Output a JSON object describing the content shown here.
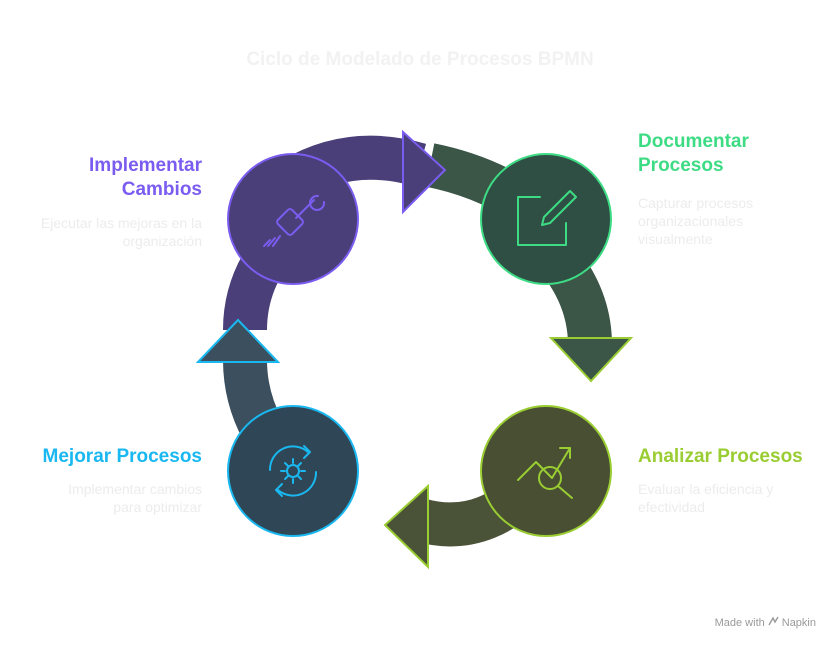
{
  "title": "Ciclo de Modelado de Procesos BPMN",
  "steps": [
    {
      "id": "documentar",
      "label": "Documentar Procesos",
      "label_line1": "Documentar",
      "label_line2": "Procesos",
      "description_line1": "Capturar procesos",
      "description_line2": "organizacionales",
      "description_line3": "visualmente",
      "icon": "edit-document-icon",
      "color": "#3ddc84"
    },
    {
      "id": "analizar",
      "label": "Analizar Procesos",
      "description_line1": "Evaluar la eficiencia y",
      "description_line2": "efectividad",
      "icon": "chart-magnifier-icon",
      "color": "#9acd32"
    },
    {
      "id": "mejorar",
      "label": "Mejorar Procesos",
      "description_line1": "Implementar cambios",
      "description_line2": "para optimizar",
      "icon": "gear-cycle-icon",
      "color": "#1ab8f0"
    },
    {
      "id": "implementar",
      "label": "Implementar Cambios",
      "label_line1": "Implementar",
      "label_line2": "Cambios",
      "description_line1": "Ejecutar las mejoras en la",
      "description_line2": "organización",
      "icon": "hand-wrench-icon",
      "color": "#7b5cf0"
    }
  ],
  "footer": {
    "made_with": "Made with",
    "brand": "Napkin"
  }
}
